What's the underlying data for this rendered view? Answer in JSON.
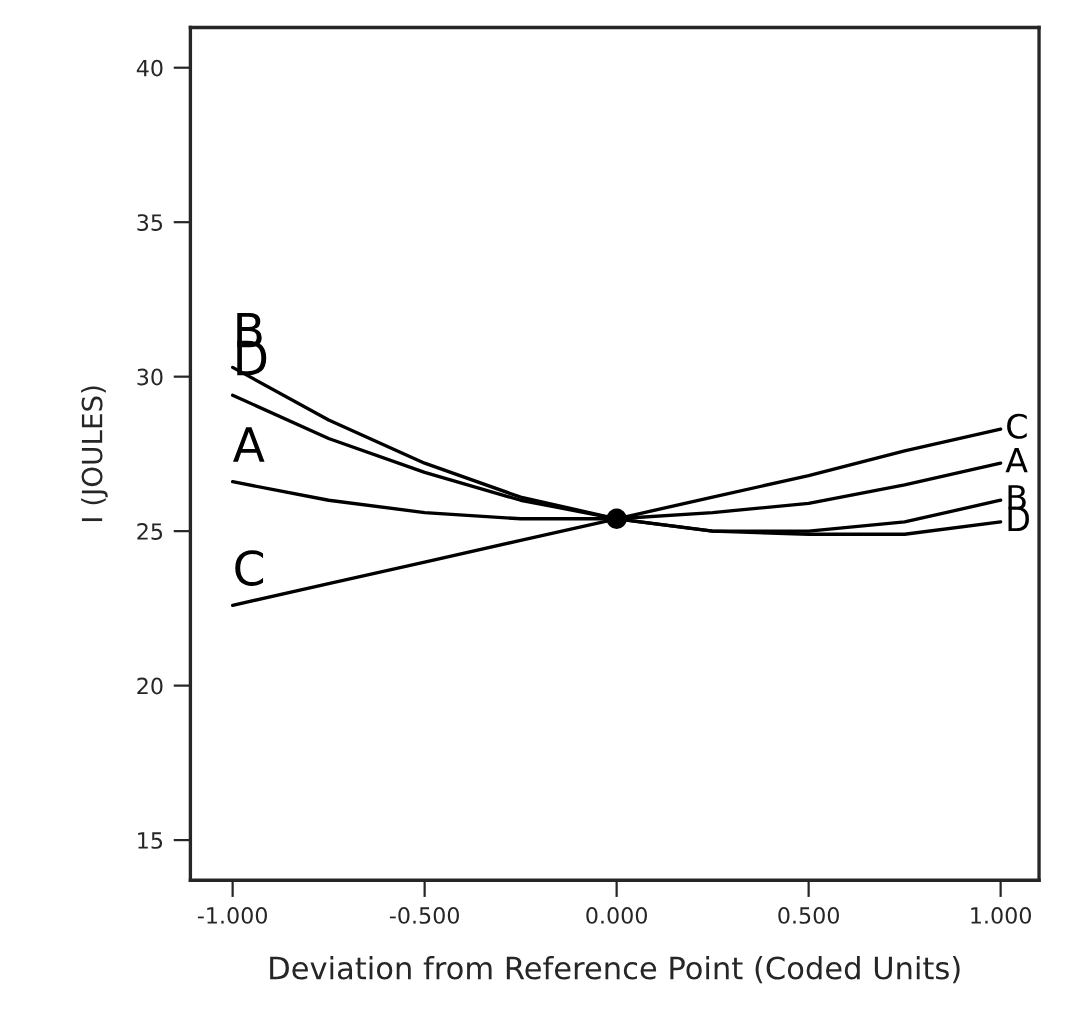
{
  "chart_data": {
    "type": "line",
    "xlabel": "Deviation from Reference Point (Coded Units)",
    "ylabel": "I (JOULES)",
    "xlim": [
      -1.11,
      1.1
    ],
    "ylim": [
      13.7,
      41.3
    ],
    "xticks": [
      {
        "value": -1,
        "label": "-1.000"
      },
      {
        "value": -0.5,
        "label": "-0.500"
      },
      {
        "value": 0,
        "label": "0.000"
      },
      {
        "value": 0.5,
        "label": "0.500"
      },
      {
        "value": 1,
        "label": "1.000"
      }
    ],
    "yticks": [
      15,
      20,
      25,
      30,
      35,
      40
    ],
    "grid": false,
    "legend": false,
    "x": [
      -1,
      -0.75,
      -0.5,
      -0.25,
      0,
      0.25,
      0.5,
      0.75,
      1
    ],
    "series": [
      {
        "name": "A",
        "color": "#000000",
        "values": [
          26.6,
          26.0,
          25.6,
          25.4,
          25.4,
          25.6,
          25.9,
          26.5,
          27.2
        ]
      },
      {
        "name": "B",
        "color": "#000000",
        "values": [
          30.3,
          28.6,
          27.2,
          26.1,
          25.4,
          25.0,
          25.0,
          25.3,
          26.0
        ]
      },
      {
        "name": "C",
        "color": "#000000",
        "values": [
          22.6,
          23.3,
          24.0,
          24.7,
          25.4,
          26.1,
          26.8,
          27.6,
          28.3
        ]
      },
      {
        "name": "D",
        "color": "#000000",
        "values": [
          29.4,
          28.0,
          26.9,
          26.0,
          25.4,
          25.0,
          24.9,
          24.9,
          25.3
        ]
      },
      {
        "type": "scatter",
        "color": "#000000",
        "x": [
          0
        ],
        "values": [
          25.4
        ],
        "marker": "circle"
      }
    ]
  }
}
